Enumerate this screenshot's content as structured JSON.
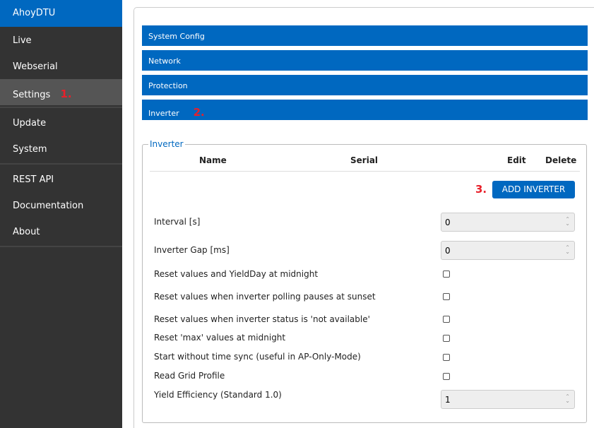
{
  "sidebar": {
    "brand": "AhoyDTU",
    "items": [
      {
        "label": "Live"
      },
      {
        "label": "Webserial"
      },
      {
        "label": "Settings",
        "mark": "1."
      },
      {
        "label": "Update"
      },
      {
        "label": "System"
      },
      {
        "label": "REST API"
      },
      {
        "label": "Documentation"
      },
      {
        "label": "About"
      }
    ]
  },
  "sections": [
    {
      "label": "System Config"
    },
    {
      "label": "Network"
    },
    {
      "label": "Protection"
    },
    {
      "label": "Inverter",
      "mark": "2."
    }
  ],
  "inverter": {
    "legend": "Inverter",
    "columns": [
      "Name",
      "Serial",
      "Edit",
      "Delete"
    ],
    "add_mark": "3.",
    "add_label": "ADD INVERTER",
    "interval_label": "Interval [s]",
    "interval_value": "0",
    "gap_label": "Inverter Gap [ms]",
    "gap_value": "0",
    "checks": [
      {
        "label": "Reset values and YieldDay at midnight",
        "checked": false
      },
      {
        "label": "Reset values when inverter polling pauses at sunset",
        "checked": false
      },
      {
        "label": "Reset values when inverter status is 'not available'",
        "checked": false
      },
      {
        "label": "Reset 'max' values at midnight",
        "checked": false
      },
      {
        "label": "Start without time sync (useful in AP-Only-Mode)",
        "checked": false
      },
      {
        "label": "Read Grid Profile",
        "checked": false
      }
    ],
    "yield_label": "Yield Efficiency (Standard 1.0)",
    "yield_value": "1"
  },
  "colors": {
    "accent": "#0068c0",
    "sidebar": "#333333",
    "annotation": "#e8202a"
  }
}
